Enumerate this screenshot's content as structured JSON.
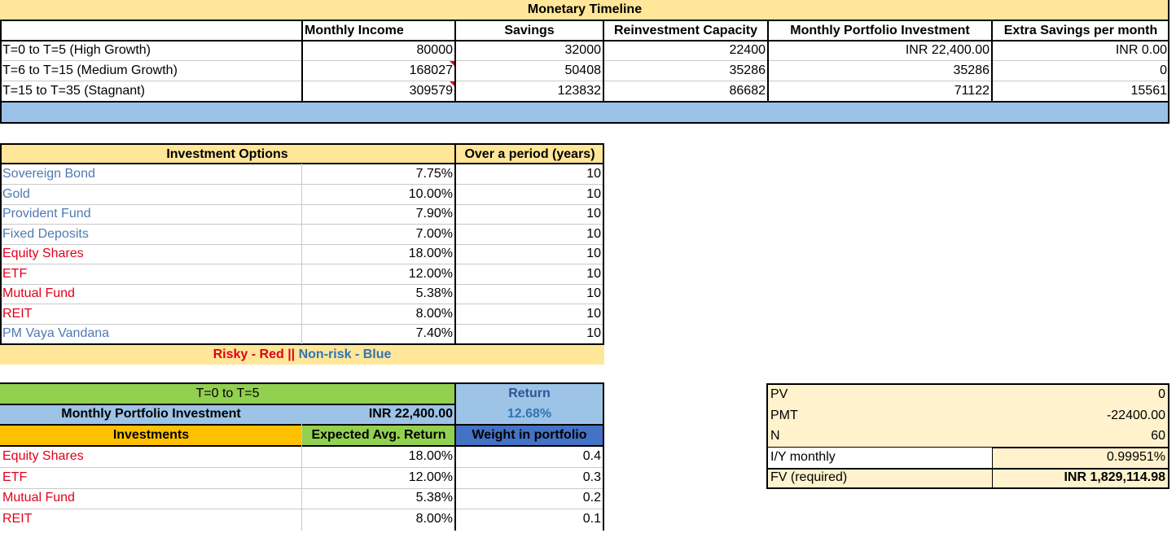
{
  "timeline": {
    "title": "Monetary Timeline",
    "headers": [
      "Monthly Income",
      "Savings",
      "Reinvestment Capacity",
      "Monthly Portfolio Investment",
      "Extra Savings per month"
    ],
    "rows": [
      {
        "label": "T=0 to T=5 (High Growth)",
        "income": "80000",
        "savings": "32000",
        "reinvest": "22400",
        "portfolio": "INR 22,400.00",
        "extra": "INR 0.00"
      },
      {
        "label": "T=6 to T=15 (Medium Growth)",
        "income": "168027",
        "savings": "50408",
        "reinvest": "35286",
        "portfolio": "35286",
        "extra": "0"
      },
      {
        "label": "T=15 to T=35 (Stagnant)",
        "income": "309579",
        "savings": "123832",
        "reinvest": "86682",
        "portfolio": "71122",
        "extra": "15561"
      }
    ]
  },
  "options": {
    "header": "Investment Options",
    "period_header": "Over a period (years)",
    "rows": [
      {
        "name": "Sovereign Bond",
        "rate": "7.75%",
        "years": "10",
        "risk": "blue"
      },
      {
        "name": "Gold",
        "rate": "10.00%",
        "years": "10",
        "risk": "blue"
      },
      {
        "name": "Provident Fund",
        "rate": "7.90%",
        "years": "10",
        "risk": "blue"
      },
      {
        "name": "Fixed Deposits",
        "rate": "7.00%",
        "years": "10",
        "risk": "blue"
      },
      {
        "name": "Equity Shares",
        "rate": "18.00%",
        "years": "10",
        "risk": "red"
      },
      {
        "name": "ETF",
        "rate": "12.00%",
        "years": "10",
        "risk": "red"
      },
      {
        "name": "Mutual Fund",
        "rate": "5.38%",
        "years": "10",
        "risk": "red"
      },
      {
        "name": "REIT",
        "rate": "8.00%",
        "years": "10",
        "risk": "red"
      },
      {
        "name": "PM Vaya Vandana",
        "rate": "7.40%",
        "years": "10",
        "risk": "blue"
      }
    ],
    "legend_risky": "Risky - Red",
    "legend_sep": " || ",
    "legend_nonrisk": "Non-risk - Blue",
    "color_risky": "#e0001b",
    "color_nonrisk": "#4f79b4"
  },
  "portfolio": {
    "period": "T=0 to T=5",
    "return_label": "Return",
    "return_value": "12.68%",
    "monthly_label": "Monthly Portfolio Investment",
    "monthly_value": "INR 22,400.00",
    "col_investments": "Investments",
    "col_expected": "Expected Avg. Return",
    "col_weight": "Weight in portfolio",
    "rows": [
      {
        "name": "Equity Shares",
        "ret": "18.00%",
        "weight": "0.4"
      },
      {
        "name": "ETF",
        "ret": "12.00%",
        "weight": "0.3"
      },
      {
        "name": "Mutual Fund",
        "ret": "5.38%",
        "weight": "0.2"
      },
      {
        "name": "REIT",
        "ret": "8.00%",
        "weight": "0.1"
      }
    ]
  },
  "fv": {
    "rows": [
      {
        "label": "PV",
        "value": "0"
      },
      {
        "label": "PMT",
        "value": "-22400.00"
      },
      {
        "label": "N",
        "value": "60"
      },
      {
        "label": "I/Y monthly",
        "value": "0.99951%"
      },
      {
        "label": "FV (required)",
        "value": "INR 1,829,114.98"
      }
    ]
  },
  "colors": {
    "header_yellow": "#ffe699",
    "light_yellow": "#fff2cc",
    "band_blue": "#9bc2e6",
    "green": "#92d050",
    "light_blue": "#9dc3e6",
    "orange": "#ffc000",
    "mid_blue": "#4472c4"
  }
}
